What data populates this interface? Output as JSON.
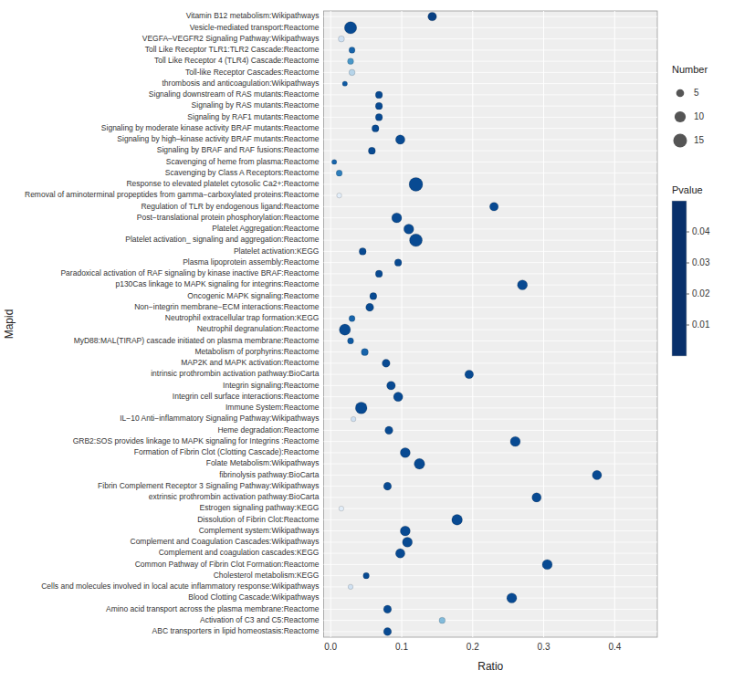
{
  "chart_data": {
    "type": "scatter",
    "xlabel": "Ratio",
    "ylabel": "Mapid",
    "categories": [
      "Vitamin B12 metabolism:Wikipathways",
      "Vesicle-mediated transport:Reactome",
      "VEGFA–VEGFR2 Signaling Pathway:Wikipathways",
      "Toll Like Receptor TLR1:TLR2 Cascade:Reactome",
      "Toll Like Receptor 4 (TLR4) Cascade:Reactome",
      "Toll-like Receptor Cascades:Reactome",
      "thrombosis and anticoagulation:Wikipathways",
      "Signaling downstream of RAS mutants:Reactome",
      "Signaling by RAS mutants:Reactome",
      "Signaling by RAF1 mutants:Reactome",
      "Signaling by moderate kinase activity BRAF mutants:Reactome",
      "Signaling by high–kinase activity BRAF mutants:Reactome",
      "Signaling by BRAF and RAF fusions:Reactome",
      "Scavenging of heme from plasma:Reactome",
      "Scavenging by Class A Receptors:Reactome",
      "Response to elevated platelet cytosolic Ca2+:Reactome",
      "Removal of aminoterminal propeptides from gamma−carboxylated proteins:Reactome",
      "Regulation of TLR by endogenous ligand:Reactome",
      "Post−translational protein phosphorylation:Reactome",
      "Platelet Aggregation:Reactome",
      "Platelet activation_ signaling and aggregation:Reactome",
      "Platelet activation:KEGG",
      "Plasma lipoprotein assembly:Reactome",
      "Paradoxical activation of RAF signaling by kinase inactive BRAF:Reactome",
      "p130Cas linkage to MAPK signaling for integrins:Reactome",
      "Oncogenic MAPK signaling:Reactome",
      "Non−integrin membrane−ECM interactions:Reactome",
      "Neutrophil extracellular trap formation:KEGG",
      "Neutrophil degranulation:Reactome",
      "MyD88:MAL(TIRAP) cascade initiated on plasma membrane:Reactome",
      "Metabolism of porphyrins:Reactome",
      "MAP2K and MAPK activation:Reactome",
      "intrinsic prothrombin activation pathway:BioCarta",
      "Integrin signaling:Reactome",
      "Integrin cell surface interactions:Reactome",
      "Immune System:Reactome",
      "IL−10 Anti−inflammatory Signaling Pathway:Wikipathways",
      "Heme degradation:Reactome",
      "GRB2:SOS provides linkage to MAPK signaling for Integrins :Reactome",
      "Formation of Fibrin Clot (Clotting Cascade):Reactome",
      "Folate Metabolism:Wikipathways",
      "fibrinolysis pathway:BioCarta",
      "Fibrin Complement Receptor 3 Signaling Pathway:Wikipathways",
      "extrinsic prothrombin activation pathway:BioCarta",
      "Estrogen signaling pathway:KEGG",
      "Dissolution of Fibrin Clot:Reactome",
      "Complement system:Wikipathways",
      "Complement and Coagulation Cascades:Wikipathways",
      "Complement and coagulation cascades:KEGG",
      "Common Pathway of Fibrin Clot Formation:Reactome",
      "Cholesterol metabolism:KEGG",
      "Cells and molecules involved in local acute inflammatory response:Wikipathways",
      "Blood Clotting Cascade:Wikipathways",
      "Amino acid transport across the plasma membrane:Reactome",
      "Activation of C3 and C5:Reactome",
      "ABC transporters in lipid homeostasis:Reactome"
    ],
    "values": [
      0.143,
      0.028,
      0.015,
      0.03,
      0.028,
      0.03,
      0.02,
      0.068,
      0.068,
      0.068,
      0.063,
      0.098,
      0.058,
      0.005,
      0.012,
      0.12,
      0.012,
      0.23,
      0.093,
      0.11,
      0.12,
      0.045,
      0.095,
      0.068,
      0.27,
      0.06,
      0.055,
      0.03,
      0.02,
      0.028,
      0.048,
      0.078,
      0.195,
      0.085,
      0.095,
      0.043,
      0.032,
      0.082,
      0.26,
      0.105,
      0.125,
      0.375,
      0.08,
      0.29,
      0.015,
      0.178,
      0.105,
      0.108,
      0.098,
      0.305,
      0.05,
      0.028,
      0.255,
      0.08,
      0.157,
      0.08
    ],
    "sizes": [
      6,
      12,
      3,
      3,
      3,
      3,
      2,
      4,
      4,
      4,
      4,
      7,
      4,
      2,
      3,
      15,
      2,
      6,
      8,
      8,
      13,
      4,
      4,
      4,
      8,
      4,
      5,
      3,
      10,
      3,
      4,
      5,
      6,
      6,
      7,
      11,
      2,
      5,
      8,
      8,
      9,
      7,
      5,
      7,
      2,
      9,
      8,
      8,
      7,
      8,
      3,
      2,
      8,
      5,
      3,
      5
    ],
    "pvalues": [
      0.003,
      0.005,
      0.04,
      0.01,
      0.02,
      0.035,
      0.008,
      0.005,
      0.005,
      0.005,
      0.005,
      0.005,
      0.005,
      0.01,
      0.015,
      0.005,
      0.045,
      0.005,
      0.005,
      0.005,
      0.005,
      0.005,
      0.005,
      0.005,
      0.005,
      0.005,
      0.005,
      0.01,
      0.005,
      0.008,
      0.01,
      0.005,
      0.005,
      0.005,
      0.005,
      0.005,
      0.04,
      0.005,
      0.005,
      0.005,
      0.005,
      0.005,
      0.005,
      0.005,
      0.045,
      0.005,
      0.005,
      0.005,
      0.005,
      0.005,
      0.005,
      0.04,
      0.005,
      0.005,
      0.028,
      0.005
    ],
    "xlim": [
      -0.01,
      0.46
    ],
    "xticks": [
      {
        "value": 0.0,
        "label": "0.0"
      },
      0.1,
      0.2,
      0.3,
      0.4
    ],
    "grid": true,
    "size_legend": {
      "title": "Number",
      "values": [
        5,
        10,
        15
      ]
    },
    "colorbar": {
      "title": "Pvalue",
      "lim": [
        0.0,
        0.05
      ],
      "ticks": [
        0.04,
        0.03,
        0.02,
        0.01
      ]
    }
  }
}
